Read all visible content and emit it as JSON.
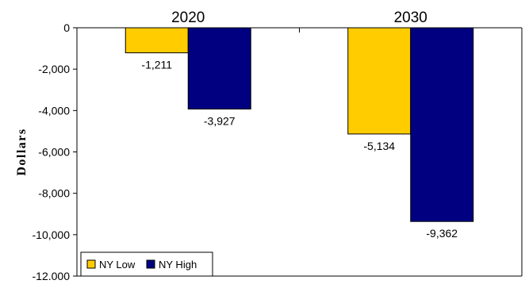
{
  "chart_data": {
    "type": "bar",
    "categories": [
      "2020",
      "2030"
    ],
    "series": [
      {
        "name": "NY Low",
        "values": [
          -1211,
          -5134
        ],
        "color": "#ffcc00",
        "labels": [
          "-1,211",
          "-5,134"
        ]
      },
      {
        "name": "NY High",
        "values": [
          -3927,
          -9362
        ],
        "color": "#000080",
        "labels": [
          "-3,927",
          "-9,362"
        ]
      }
    ],
    "ylabel": "Dollars",
    "ylim": [
      -12000,
      0
    ],
    "yticks": [
      0,
      -2000,
      -4000,
      -6000,
      -8000,
      -10000,
      -12000
    ],
    "ytick_labels": [
      "0",
      "-2,000",
      "-4,000",
      "-6,000",
      "-8,000",
      "-10,000",
      "-12,000"
    ],
    "category_labels_position": "top",
    "legend_position": "bottom-left",
    "grid": false
  }
}
